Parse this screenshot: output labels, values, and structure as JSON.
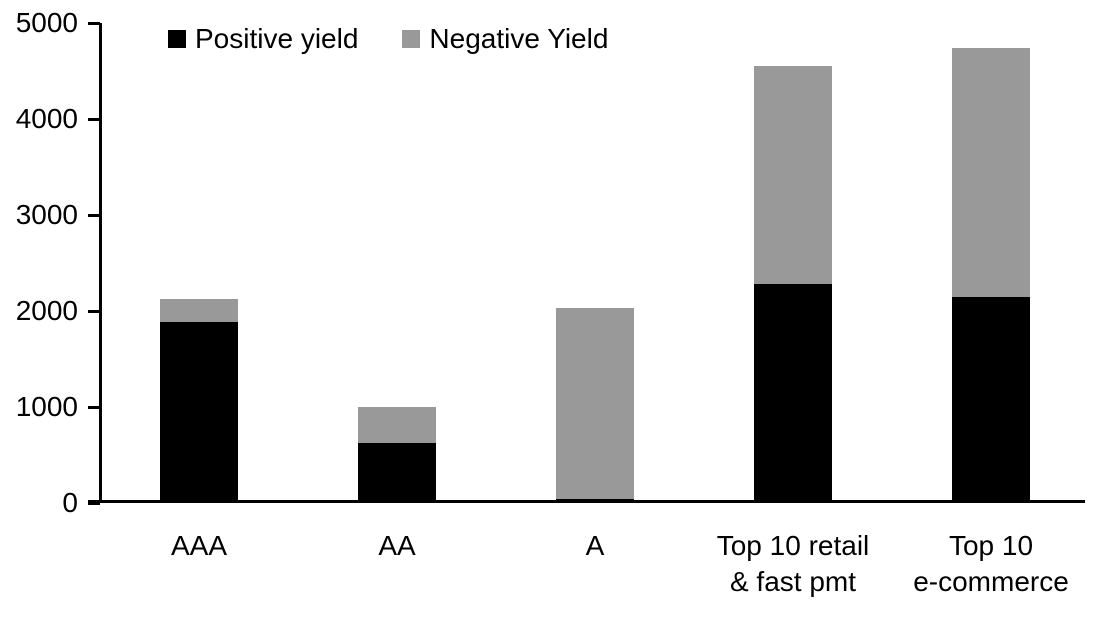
{
  "chart_data": {
    "type": "bar",
    "stacked": true,
    "categories": [
      "AAA",
      "AA",
      "A",
      "Top 10 retail\n& fast pmt",
      "Top 10\ne-commerce"
    ],
    "series": [
      {
        "name": "Positive yield",
        "color": "#000000",
        "values": [
          1890,
          620,
          40,
          2280,
          2150
        ]
      },
      {
        "name": "Negative Yield",
        "color": "#999999",
        "values": [
          230,
          380,
          1990,
          2270,
          2590
        ]
      }
    ],
    "stack_totals": [
      2120,
      1000,
      2030,
      4550,
      4740
    ],
    "ylim": [
      0,
      5000
    ],
    "yticks": [
      0,
      1000,
      2000,
      3000,
      4000,
      5000
    ],
    "ytick_labels": [
      "0",
      "1000",
      "2000",
      "3000",
      "4000",
      "5000"
    ],
    "legend_position": "top",
    "grid": false,
    "colors": {
      "axis": "#000000",
      "background": "#ffffff",
      "positive_yield": "#000000",
      "negative_yield": "#999999"
    }
  }
}
